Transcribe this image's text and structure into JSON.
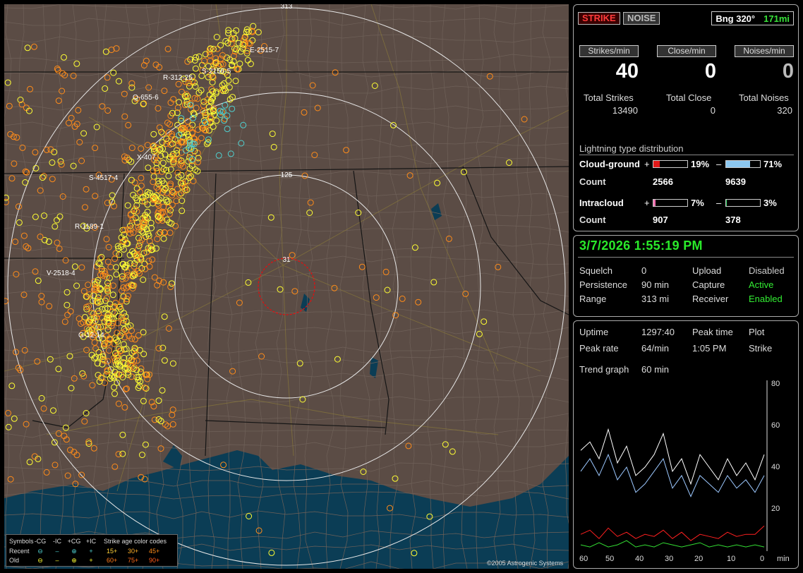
{
  "map": {
    "range_labels": [
      "313",
      "125",
      "31"
    ],
    "cells": [
      "E-2515-7",
      "S-2156-5",
      "R-312-25",
      "Q-655-6",
      "X-407",
      "S-4517-4",
      "R-1189-1",
      "V-2518-4",
      "G-12-14"
    ],
    "copyright": "©2005 Astrogenic Systems",
    "legend": {
      "symbols_label": "Symbols",
      "types": [
        "-CG",
        "-IC",
        "+CG",
        "+IC"
      ],
      "age_title": "Strike age color codes",
      "recent_label": "Recent",
      "old_label": "Old",
      "ages_recent": [
        "15+",
        "30+",
        "45+"
      ],
      "ages_old": [
        "60+",
        "75+",
        "90+"
      ]
    },
    "colors": {
      "land": "#5b4c45",
      "water": "#0b3d55",
      "county_lines": "#6f6159",
      "state_lines": "#151515",
      "roads": "#8a7a3a",
      "rings": "#e8e8e8",
      "center_ring": "#e01010",
      "strike_recent": "#ffff33",
      "strike_old": "#ff8c1a"
    }
  },
  "status": {
    "strike_tab": "STRIKE",
    "noise_tab": "NOISE",
    "bearing": "Bng 320°",
    "distance": "171mi",
    "rates": [
      {
        "button": "Strikes/min",
        "value": "40",
        "total_label": "Total Strikes",
        "total": "13490",
        "color": "#ffffff"
      },
      {
        "button": "Close/min",
        "value": "0",
        "total_label": "Total Close",
        "total": "0",
        "color": "#ffffff"
      },
      {
        "button": "Noises/min",
        "value": "0",
        "total_label": "Total Noises",
        "total": "320",
        "color": "#bbbbbb"
      }
    ],
    "distribution_title": "Lightning type distribution",
    "cloud_ground": {
      "label": "Cloud-ground",
      "pos_sign": "+",
      "pos_pct": "19%",
      "pos_fraction": 0.19,
      "pos_color": "#e01818",
      "neg_sign": "–",
      "neg_pct": "71%",
      "neg_fraction": 0.71,
      "neg_color": "#8cc8f0",
      "count_label": "Count",
      "pos_count": "2566",
      "neg_count": "9639"
    },
    "intracloud": {
      "label": "Intracloud",
      "pos_sign": "+",
      "pos_pct": "7%",
      "pos_fraction": 0.07,
      "pos_color": "#f070b0",
      "neg_sign": "–",
      "neg_pct": "3%",
      "neg_fraction": 0.03,
      "neg_color": "#30d060",
      "count_label": "Count",
      "pos_count": "907",
      "neg_count": "378"
    }
  },
  "settings": {
    "datetime": "3/7/2026 1:55:19 PM",
    "squelch_label": "Squelch",
    "squelch": "0",
    "persistence_label": "Persistence",
    "persistence": "90 min",
    "range_label": "Range",
    "range": "313 mi",
    "upload_label": "Upload",
    "upload": "Disabled",
    "capture_label": "Capture",
    "capture": "Active",
    "receiver_label": "Receiver",
    "receiver": "Enabled"
  },
  "trend": {
    "uptime_label": "Uptime",
    "uptime": "1297:40",
    "peak_time_label": "Peak time",
    "peak_time": "1:05 PM",
    "plot_label": "Plot",
    "plot": "Strike",
    "peak_rate_label": "Peak rate",
    "peak_rate": "64/min",
    "graph_label": "Trend graph",
    "graph": "60 min",
    "y_ticks": [
      "80",
      "60",
      "40",
      "20"
    ],
    "x_ticks": [
      "60",
      "50",
      "40",
      "30",
      "20",
      "10",
      "0"
    ],
    "x_unit": "min"
  },
  "chart_data": {
    "type": "line",
    "xlabel": "min",
    "ylabel": "",
    "xlim": [
      60,
      0
    ],
    "ylim": [
      0,
      80
    ],
    "x": [
      60,
      57,
      54,
      51,
      48,
      45,
      42,
      39,
      36,
      33,
      30,
      27,
      24,
      21,
      18,
      15,
      12,
      9,
      6,
      3,
      0
    ],
    "series": [
      {
        "color": "#ffffff",
        "values": [
          48,
          52,
          44,
          58,
          42,
          50,
          36,
          40,
          46,
          56,
          38,
          44,
          32,
          46,
          40,
          34,
          44,
          36,
          42,
          34,
          46
        ]
      },
      {
        "color": "#9cc8ff",
        "values": [
          38,
          44,
          36,
          46,
          34,
          40,
          28,
          32,
          38,
          44,
          30,
          36,
          26,
          36,
          32,
          28,
          36,
          30,
          34,
          28,
          36
        ]
      },
      {
        "color": "#ff2020",
        "values": [
          8,
          10,
          6,
          11,
          7,
          9,
          6,
          8,
          7,
          10,
          6,
          9,
          5,
          8,
          7,
          6,
          9,
          7,
          8,
          8,
          12
        ]
      },
      {
        "color": "#33dd33",
        "values": [
          3,
          2,
          4,
          2,
          3,
          5,
          2,
          3,
          2,
          4,
          3,
          2,
          3,
          4,
          2,
          3,
          2,
          3,
          2,
          3,
          2
        ]
      }
    ]
  }
}
